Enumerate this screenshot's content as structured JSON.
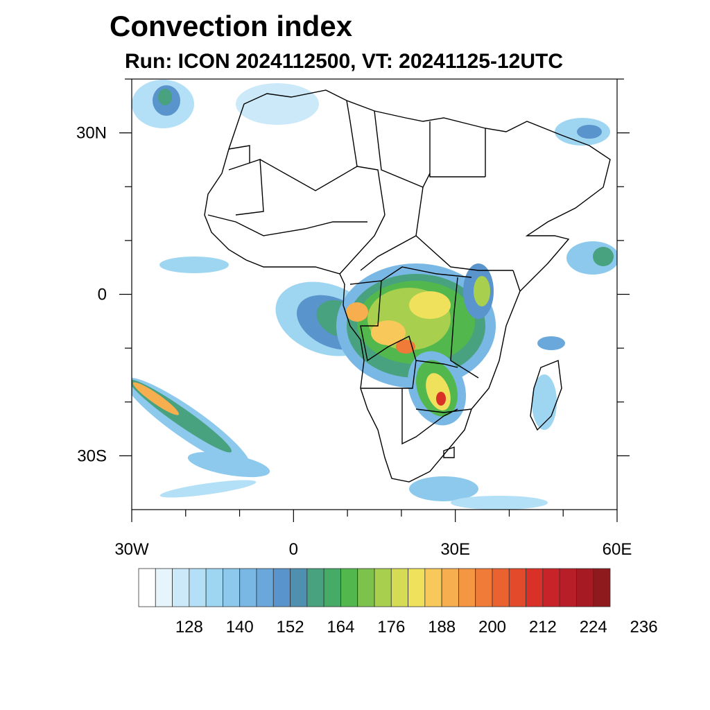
{
  "title": "Convection index",
  "subtitle": "Run: ICON 2024112500,  VT: 20241125-12UTC",
  "map": {
    "lon_range": [
      -30,
      60
    ],
    "lat_range": [
      -40,
      40
    ],
    "x_ticks": [
      {
        "value": -30,
        "label": "30W"
      },
      {
        "value": 0,
        "label": "0"
      },
      {
        "value": 30,
        "label": "30E"
      },
      {
        "value": 60,
        "label": "60E"
      }
    ],
    "y_ticks": [
      {
        "value": 30,
        "label": "30N"
      },
      {
        "value": 0,
        "label": "0"
      },
      {
        "value": -30,
        "label": "30S"
      }
    ]
  },
  "colorbar": {
    "labels": [
      "128",
      "140",
      "152",
      "164",
      "176",
      "188",
      "200",
      "212",
      "224",
      "236"
    ],
    "colors": [
      "#ffffff",
      "#e6f5fc",
      "#cbe9f8",
      "#b3e0f6",
      "#9ed6f2",
      "#8cc9ed",
      "#79b8e4",
      "#6aa8dc",
      "#5a94cc",
      "#4f8fb0",
      "#48a17f",
      "#45ab66",
      "#52b84e",
      "#7cc24c",
      "#a8cf4d",
      "#d5dc54",
      "#f0e15c",
      "#f8c95a",
      "#f7ae4f",
      "#f59642",
      "#f07a38",
      "#ea6230",
      "#e3492b",
      "#d93128",
      "#c9232a",
      "#b81e27",
      "#a51a23",
      "#8e1a1e"
    ]
  }
}
